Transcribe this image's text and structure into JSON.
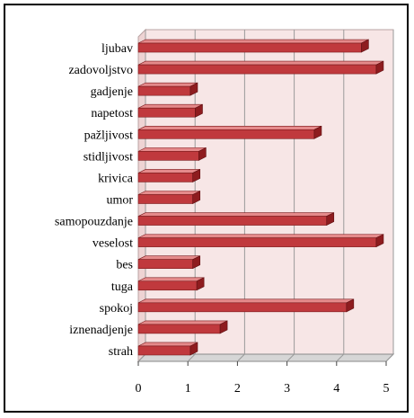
{
  "chart_data": {
    "type": "bar",
    "orientation": "horizontal",
    "style": "3d",
    "categories": [
      "ljubav",
      "zadovoljstvo",
      "gadjenje",
      "napetost",
      "pažljivost",
      "stidljivost",
      "krivica",
      "umor",
      "samopouzdanje",
      "veselost",
      "bes",
      "tuga",
      "spokoj",
      "iznenadjenje",
      "strah"
    ],
    "values": [
      4.5,
      4.8,
      1.05,
      1.15,
      3.55,
      1.22,
      1.1,
      1.1,
      3.8,
      4.8,
      1.1,
      1.18,
      4.2,
      1.65,
      1.05
    ],
    "xlim": [
      0,
      5
    ],
    "x_ticks": [
      "0",
      "1",
      "2",
      "3",
      "4",
      "5"
    ],
    "title": "",
    "xlabel": "",
    "ylabel": "",
    "grid": true,
    "legend": "none",
    "colors": {
      "bar_face": "#c0393d",
      "bar_top": "#e58a8b",
      "bar_end": "#8e1c1f",
      "wall_back": "#f7e6e6",
      "wall_side": "#eed3d3",
      "floor": "#d6d6d6",
      "grid": "#9a9a9a"
    }
  }
}
